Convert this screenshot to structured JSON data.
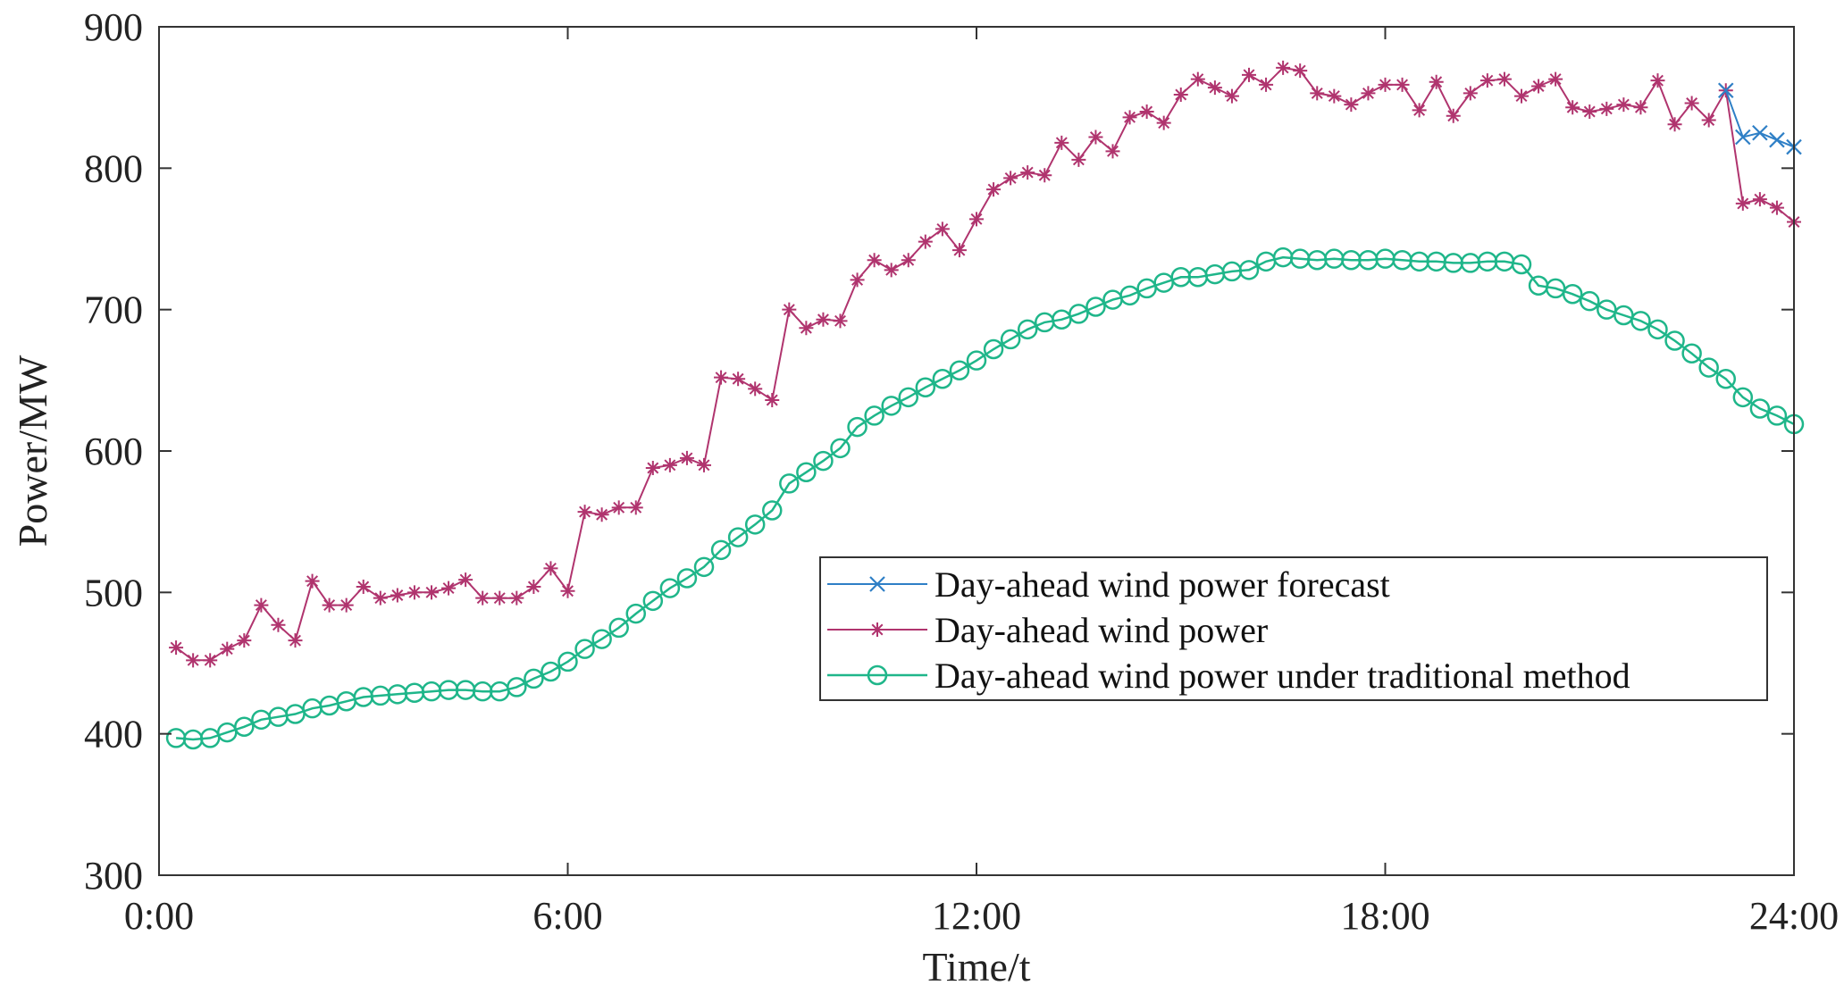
{
  "chart_data": {
    "type": "line",
    "title": "",
    "xlabel": "Time/t",
    "ylabel": "Power/MW",
    "xlim": [
      0,
      24
    ],
    "ylim": [
      300,
      900
    ],
    "x_ticks": [
      0,
      6,
      12,
      18,
      24
    ],
    "x_tick_labels": [
      "0:00",
      "6:00",
      "12:00",
      "18:00",
      "24:00"
    ],
    "y_ticks": [
      300,
      400,
      500,
      600,
      700,
      800,
      900
    ],
    "y_tick_labels": [
      "300",
      "400",
      "500",
      "600",
      "700",
      "800",
      "900"
    ],
    "grid": false,
    "legend_position": "center-right",
    "series": [
      {
        "name": "Day-ahead wind power forecast",
        "color": "#2e7fc6",
        "marker": "x",
        "x": [
          23.0,
          23.25,
          23.5,
          23.75,
          24.0
        ],
        "values": [
          855,
          822,
          825,
          820,
          815
        ]
      },
      {
        "name": "Day-ahead wind power",
        "color": "#b0346e",
        "marker": "asterisk",
        "x": [
          0.25,
          0.5,
          0.75,
          1.0,
          1.25,
          1.5,
          1.75,
          2.0,
          2.25,
          2.5,
          2.75,
          3.0,
          3.25,
          3.5,
          3.75,
          4.0,
          4.25,
          4.5,
          4.75,
          5.0,
          5.25,
          5.5,
          5.75,
          6.0,
          6.25,
          6.5,
          6.75,
          7.0,
          7.25,
          7.5,
          7.75,
          8.0,
          8.25,
          8.5,
          8.75,
          9.0,
          9.25,
          9.5,
          9.75,
          10.0,
          10.25,
          10.5,
          10.75,
          11.0,
          11.25,
          11.5,
          11.75,
          12.0,
          12.25,
          12.5,
          12.75,
          13.0,
          13.25,
          13.5,
          13.75,
          14.0,
          14.25,
          14.5,
          14.75,
          15.0,
          15.25,
          15.5,
          15.75,
          16.0,
          16.25,
          16.5,
          16.75,
          17.0,
          17.25,
          17.5,
          17.75,
          18.0,
          18.25,
          18.5,
          18.75,
          19.0,
          19.25,
          19.5,
          19.75,
          20.0,
          20.25,
          20.5,
          20.75,
          21.0,
          21.25,
          21.5,
          21.75,
          22.0,
          22.25,
          22.5,
          22.75,
          23.0,
          23.25,
          23.5,
          23.75,
          24.0
        ],
        "values": [
          461,
          452,
          452,
          460,
          466,
          491,
          477,
          466,
          508,
          491,
          491,
          504,
          496,
          498,
          500,
          500,
          503,
          509,
          496,
          496,
          496,
          504,
          517,
          501,
          557,
          555,
          560,
          560,
          588,
          590,
          595,
          590,
          652,
          651,
          644,
          636,
          700,
          687,
          693,
          692,
          721,
          735,
          728,
          735,
          748,
          757,
          742,
          764,
          785,
          793,
          797,
          795,
          818,
          806,
          822,
          812,
          836,
          840,
          832,
          852,
          863,
          857,
          851,
          866,
          859,
          871,
          869,
          853,
          851,
          845,
          853,
          859,
          859,
          841,
          861,
          837,
          853,
          862,
          863,
          851,
          858,
          863,
          843,
          840,
          842,
          845,
          843,
          862,
          831,
          846,
          834,
          855,
          775,
          778,
          772,
          762
        ]
      },
      {
        "name": "Day-ahead wind power under traditional method",
        "color": "#1fb68a",
        "marker": "circle",
        "x": [
          0.25,
          0.5,
          0.75,
          1.0,
          1.25,
          1.5,
          1.75,
          2.0,
          2.25,
          2.5,
          2.75,
          3.0,
          3.25,
          3.5,
          3.75,
          4.0,
          4.25,
          4.5,
          4.75,
          5.0,
          5.25,
          5.5,
          5.75,
          6.0,
          6.25,
          6.5,
          6.75,
          7.0,
          7.25,
          7.5,
          7.75,
          8.0,
          8.25,
          8.5,
          8.75,
          9.0,
          9.25,
          9.5,
          9.75,
          10.0,
          10.25,
          10.5,
          10.75,
          11.0,
          11.25,
          11.5,
          11.75,
          12.0,
          12.25,
          12.5,
          12.75,
          13.0,
          13.25,
          13.5,
          13.75,
          14.0,
          14.25,
          14.5,
          14.75,
          15.0,
          15.25,
          15.5,
          15.75,
          16.0,
          16.25,
          16.5,
          16.75,
          17.0,
          17.25,
          17.5,
          17.75,
          18.0,
          18.25,
          18.5,
          18.75,
          19.0,
          19.25,
          19.5,
          19.75,
          20.0,
          20.25,
          20.5,
          20.75,
          21.0,
          21.25,
          21.5,
          21.75,
          22.0,
          22.25,
          22.5,
          22.75,
          23.0,
          23.25,
          23.5,
          23.75,
          24.0
        ],
        "values": [
          397,
          396,
          397,
          401,
          405,
          410,
          412,
          414,
          418,
          420,
          423,
          426,
          427,
          428,
          429,
          430,
          431,
          431,
          430,
          430,
          433,
          439,
          444,
          451,
          460,
          467,
          475,
          485,
          494,
          503,
          510,
          518,
          530,
          539,
          548,
          558,
          577,
          585,
          593,
          602,
          617,
          625,
          632,
          638,
          645,
          651,
          657,
          664,
          672,
          679,
          686,
          691,
          693,
          697,
          702,
          707,
          710,
          715,
          719,
          723,
          723,
          725,
          727,
          728,
          734,
          737,
          736,
          735,
          736,
          735,
          735,
          736,
          735,
          734,
          734,
          733,
          733,
          734,
          734,
          732,
          717,
          715,
          711,
          706,
          700,
          696,
          692,
          686,
          678,
          669,
          659,
          651,
          638,
          630,
          625,
          619
        ]
      }
    ]
  }
}
